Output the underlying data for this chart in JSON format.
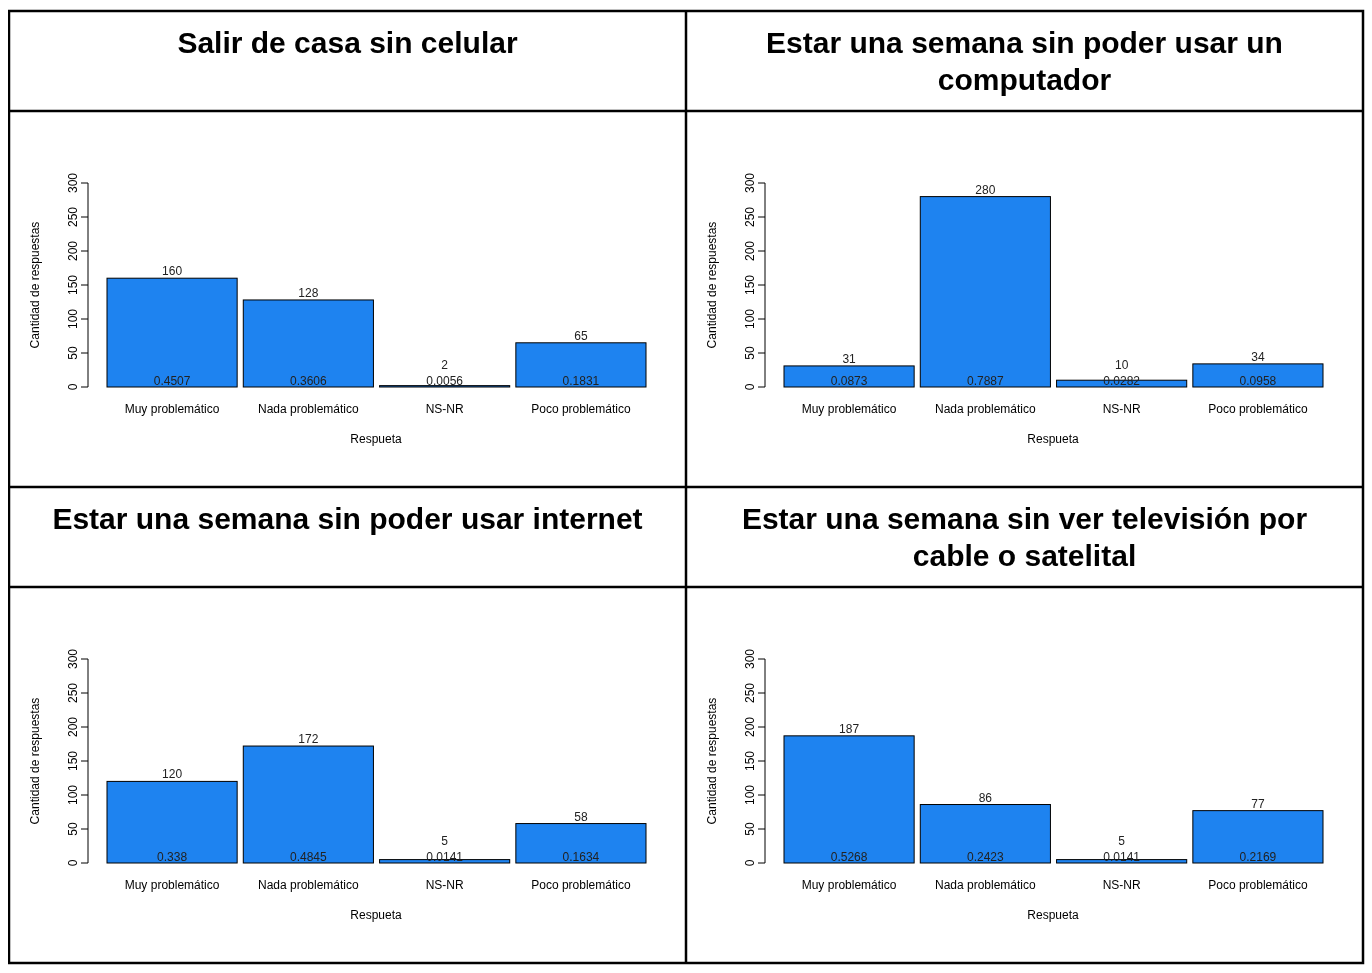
{
  "chart_data": [
    {
      "type": "bar",
      "title": "Salir de casa sin celular",
      "xlabel": "Respueta",
      "ylabel": "Cantidad de respuestas",
      "categories": [
        "Muy problemático",
        "Nada problemático",
        "NS-NR",
        "Poco problemático"
      ],
      "values": [
        160,
        128,
        2,
        65
      ],
      "color": "#1e83f0",
      "ylim": [
        0,
        300
      ],
      "yticks": [
        0,
        50,
        100,
        150,
        200,
        250,
        300
      ],
      "data_labels": true,
      "annotations": [
        {
          "text": "0.4507",
          "x": "Muy problemático",
          "y": 0
        },
        {
          "text": "0.3606",
          "x": "Nada problemático",
          "y": 0
        },
        {
          "text": "0.0056",
          "x": "NS-NR",
          "y": 0
        },
        {
          "text": "0.1831",
          "x": "Poco problemático",
          "y": 0
        }
      ]
    },
    {
      "type": "bar",
      "title": "Estar una semana sin poder usar un computador",
      "xlabel": "Respueta",
      "ylabel": "Cantidad de respuestas",
      "categories": [
        "Muy problemático",
        "Nada problemático",
        "NS-NR",
        "Poco problemático"
      ],
      "values": [
        31,
        280,
        10,
        34
      ],
      "color": "#1e83f0",
      "ylim": [
        0,
        300
      ],
      "yticks": [
        0,
        50,
        100,
        150,
        200,
        250,
        300
      ],
      "data_labels": true,
      "annotations": [
        {
          "text": "0.0873",
          "x": "Muy problemático",
          "y": 0
        },
        {
          "text": "0.7887",
          "x": "Nada problemático",
          "y": 0
        },
        {
          "text": "0.0282",
          "x": "NS-NR",
          "y": 0
        },
        {
          "text": "0.0958",
          "x": "Poco problemático",
          "y": 0
        }
      ]
    },
    {
      "type": "bar",
      "title": "Estar una semana sin poder usar internet",
      "xlabel": "Respueta",
      "ylabel": "Cantidad de respuestas",
      "categories": [
        "Muy problemático",
        "Nada problemático",
        "NS-NR",
        "Poco problemático"
      ],
      "values": [
        120,
        172,
        5,
        58
      ],
      "color": "#1e83f0",
      "ylim": [
        0,
        300
      ],
      "yticks": [
        0,
        50,
        100,
        150,
        200,
        250,
        300
      ],
      "data_labels": true,
      "annotations": [
        {
          "text": "0.338",
          "x": "Muy problemático",
          "y": 0
        },
        {
          "text": "0.4845",
          "x": "Nada problemático",
          "y": 0
        },
        {
          "text": "0.0141",
          "x": "NS-NR",
          "y": 0
        },
        {
          "text": "0.1634",
          "x": "Poco problemático",
          "y": 0
        }
      ]
    },
    {
      "type": "bar",
      "title": "Estar una semana sin ver televisión por cable o satelital",
      "xlabel": "Respueta",
      "ylabel": "Cantidad de respuestas",
      "categories": [
        "Muy problemático",
        "Nada problemático",
        "NS-NR",
        "Poco problemático"
      ],
      "values": [
        187,
        86,
        5,
        77
      ],
      "color": "#1e83f0",
      "ylim": [
        0,
        300
      ],
      "yticks": [
        0,
        50,
        100,
        150,
        200,
        250,
        300
      ],
      "data_labels": true,
      "annotations": [
        {
          "text": "0.5268",
          "x": "Muy problemático",
          "y": 0
        },
        {
          "text": "0.2423",
          "x": "Nada problemático",
          "y": 0
        },
        {
          "text": "0.0141",
          "x": "NS-NR",
          "y": 0
        },
        {
          "text": "0.2169",
          "x": "Poco problemático",
          "y": 0
        }
      ]
    }
  ]
}
